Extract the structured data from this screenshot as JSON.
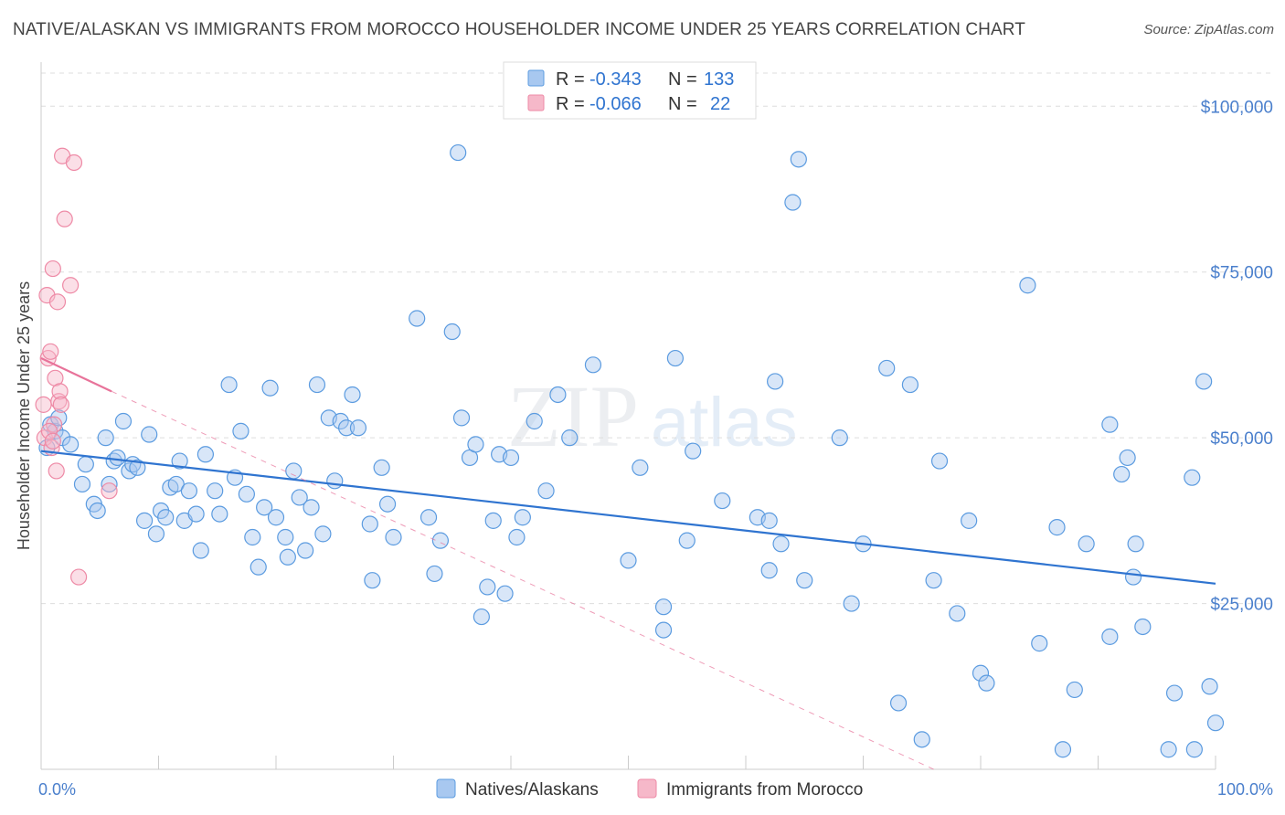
{
  "title": "NATIVE/ALASKAN VS IMMIGRANTS FROM MOROCCO HOUSEHOLDER INCOME UNDER 25 YEARS CORRELATION CHART",
  "source": "Source: ZipAtlas.com",
  "watermark": "ZIPatlas",
  "colors": {
    "blue_fill": "#a8c8f0",
    "blue_stroke": "#5b9be0",
    "blue_line": "#2f74d0",
    "pink_fill": "#f6b8c9",
    "pink_stroke": "#ee8aa6",
    "pink_line": "#e8739a",
    "axis_text": "#4a7fcc",
    "grid": "#dddddd"
  },
  "stats": {
    "series1": {
      "r_label": "R =",
      "r": "-0.343",
      "n_label": "N =",
      "n": "133"
    },
    "series2": {
      "r_label": "R =",
      "r": "-0.066",
      "n_label": "N =",
      "n": "22"
    }
  },
  "chart_data": {
    "type": "scatter",
    "ylabel": "Householder Income Under 25 years",
    "xlim": [
      0,
      100
    ],
    "ylim": [
      0,
      105000
    ],
    "x_tick_labels": [
      "0.0%",
      "100.0%"
    ],
    "y_ticks": [
      25000,
      50000,
      75000,
      100000
    ],
    "y_tick_labels": [
      "$25,000",
      "$50,000",
      "$75,000",
      "$100,000"
    ],
    "grid": "horizontal dashed",
    "legend_position": "bottom-center",
    "series": [
      {
        "name": "Natives/Alaskans",
        "color": "#a8c8f0",
        "trend": {
          "x": [
            0,
            100
          ],
          "y": [
            48000,
            28000
          ],
          "style": "solid"
        },
        "points": [
          [
            0.5,
            48500
          ],
          [
            0.8,
            52000
          ],
          [
            1.2,
            51000
          ],
          [
            1.5,
            53000
          ],
          [
            1.8,
            50000
          ],
          [
            2.5,
            49000
          ],
          [
            3.5,
            43000
          ],
          [
            3.8,
            46000
          ],
          [
            4.5,
            40000
          ],
          [
            4.8,
            39000
          ],
          [
            5.5,
            50000
          ],
          [
            5.8,
            43000
          ],
          [
            6.2,
            46500
          ],
          [
            6.5,
            47000
          ],
          [
            7,
            52500
          ],
          [
            7.5,
            45000
          ],
          [
            7.8,
            46000
          ],
          [
            8.2,
            45500
          ],
          [
            8.8,
            37500
          ],
          [
            9.2,
            50500
          ],
          [
            9.8,
            35500
          ],
          [
            10.2,
            39000
          ],
          [
            10.6,
            38000
          ],
          [
            11,
            42500
          ],
          [
            11.5,
            43000
          ],
          [
            11.8,
            46500
          ],
          [
            12.2,
            37500
          ],
          [
            12.6,
            42000
          ],
          [
            13.2,
            38500
          ],
          [
            13.6,
            33000
          ],
          [
            14,
            47500
          ],
          [
            14.8,
            42000
          ],
          [
            15.2,
            38500
          ],
          [
            16,
            58000
          ],
          [
            16.5,
            44000
          ],
          [
            17,
            51000
          ],
          [
            17.5,
            41500
          ],
          [
            18,
            35000
          ],
          [
            18.5,
            30500
          ],
          [
            19,
            39500
          ],
          [
            19.5,
            57500
          ],
          [
            20,
            38000
          ],
          [
            20.8,
            35000
          ],
          [
            21,
            32000
          ],
          [
            21.5,
            45000
          ],
          [
            22,
            41000
          ],
          [
            22.5,
            33000
          ],
          [
            23,
            39500
          ],
          [
            23.5,
            58000
          ],
          [
            24,
            35500
          ],
          [
            24.5,
            53000
          ],
          [
            25,
            43500
          ],
          [
            25.5,
            52500
          ],
          [
            26,
            51500
          ],
          [
            26.5,
            56500
          ],
          [
            27,
            51500
          ],
          [
            28,
            37000
          ],
          [
            28.2,
            28500
          ],
          [
            29,
            45500
          ],
          [
            29.5,
            40000
          ],
          [
            30,
            35000
          ],
          [
            32,
            68000
          ],
          [
            33,
            38000
          ],
          [
            33.5,
            29500
          ],
          [
            34,
            34500
          ],
          [
            35,
            66000
          ],
          [
            35.5,
            93000
          ],
          [
            35.8,
            53000
          ],
          [
            36.5,
            47000
          ],
          [
            37,
            49000
          ],
          [
            37.5,
            23000
          ],
          [
            38,
            27500
          ],
          [
            38.5,
            37500
          ],
          [
            39,
            47500
          ],
          [
            39.5,
            26500
          ],
          [
            40,
            47000
          ],
          [
            40.5,
            35000
          ],
          [
            41,
            38000
          ],
          [
            42,
            52500
          ],
          [
            43,
            42000
          ],
          [
            44,
            56500
          ],
          [
            45,
            50000
          ],
          [
            47,
            61000
          ],
          [
            50,
            31500
          ],
          [
            51,
            45500
          ],
          [
            53,
            24500
          ],
          [
            53,
            21000
          ],
          [
            54,
            62000
          ],
          [
            55,
            34500
          ],
          [
            55.5,
            48000
          ],
          [
            58,
            40500
          ],
          [
            61,
            38000
          ],
          [
            62,
            37500
          ],
          [
            62,
            30000
          ],
          [
            62.5,
            58500
          ],
          [
            63,
            34000
          ],
          [
            64,
            85500
          ],
          [
            64.5,
            92000
          ],
          [
            65,
            28500
          ],
          [
            68,
            50000
          ],
          [
            69,
            25000
          ],
          [
            70,
            34000
          ],
          [
            72,
            60500
          ],
          [
            73,
            10000
          ],
          [
            74,
            58000
          ],
          [
            75,
            4500
          ],
          [
            76,
            28500
          ],
          [
            76.5,
            46500
          ],
          [
            78,
            23500
          ],
          [
            79,
            37500
          ],
          [
            80,
            14500
          ],
          [
            80.5,
            13000
          ],
          [
            84,
            73000
          ],
          [
            85,
            19000
          ],
          [
            86.5,
            36500
          ],
          [
            87,
            3000
          ],
          [
            88,
            12000
          ],
          [
            89,
            34000
          ],
          [
            91,
            20000
          ],
          [
            91,
            52000
          ],
          [
            92,
            44500
          ],
          [
            92.5,
            47000
          ],
          [
            93,
            29000
          ],
          [
            93.2,
            34000
          ],
          [
            93.8,
            21500
          ],
          [
            96,
            3000
          ],
          [
            96.5,
            11500
          ],
          [
            98,
            44000
          ],
          [
            98.2,
            3000
          ],
          [
            99,
            58500
          ],
          [
            99.5,
            12500
          ],
          [
            100,
            7000
          ]
        ]
      },
      {
        "name": "Immigrants from Morocco",
        "color": "#f6b8c9",
        "trend": {
          "x": [
            0,
            6
          ],
          "y": [
            62000,
            57000
          ],
          "style": "solid",
          "extension_x": [
            6,
            76
          ],
          "extension_y": [
            57000,
            0
          ],
          "extension_style": "dashed"
        },
        "points": [
          [
            0.2,
            55000
          ],
          [
            0.3,
            50000
          ],
          [
            0.5,
            71500
          ],
          [
            0.6,
            62000
          ],
          [
            0.8,
            63000
          ],
          [
            0.9,
            48500
          ],
          [
            1,
            75500
          ],
          [
            1.1,
            52000
          ],
          [
            1.2,
            59000
          ],
          [
            1.3,
            45000
          ],
          [
            1.4,
            70500
          ],
          [
            1.5,
            55500
          ],
          [
            1.6,
            57000
          ],
          [
            1.7,
            55000
          ],
          [
            1.8,
            92500
          ],
          [
            2,
            83000
          ],
          [
            2.5,
            73000
          ],
          [
            2.8,
            91500
          ],
          [
            3.2,
            29000
          ],
          [
            5.8,
            42000
          ],
          [
            0.7,
            51000
          ],
          [
            1.0,
            49500
          ]
        ]
      }
    ]
  }
}
